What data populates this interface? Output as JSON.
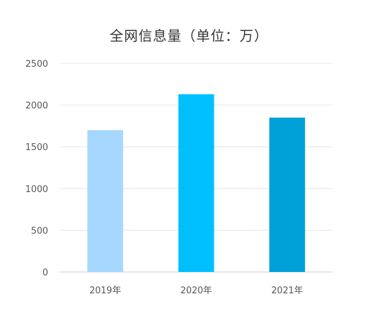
{
  "chart_data": {
    "type": "bar",
    "title": "全网信息量（单位：万）",
    "xlabel": "",
    "ylabel": "",
    "categories": [
      "2019年",
      "2020年",
      "2021年"
    ],
    "values": [
      1700,
      2130,
      1850
    ],
    "ylim": [
      0,
      2500
    ],
    "yticks": [
      0,
      500,
      1000,
      1500,
      2000,
      2500
    ],
    "grid": true,
    "legend": "none",
    "colors": [
      "#a6d8ff",
      "#00bfff",
      "#00a0d8"
    ],
    "grid_color": "#e6e6e6"
  }
}
